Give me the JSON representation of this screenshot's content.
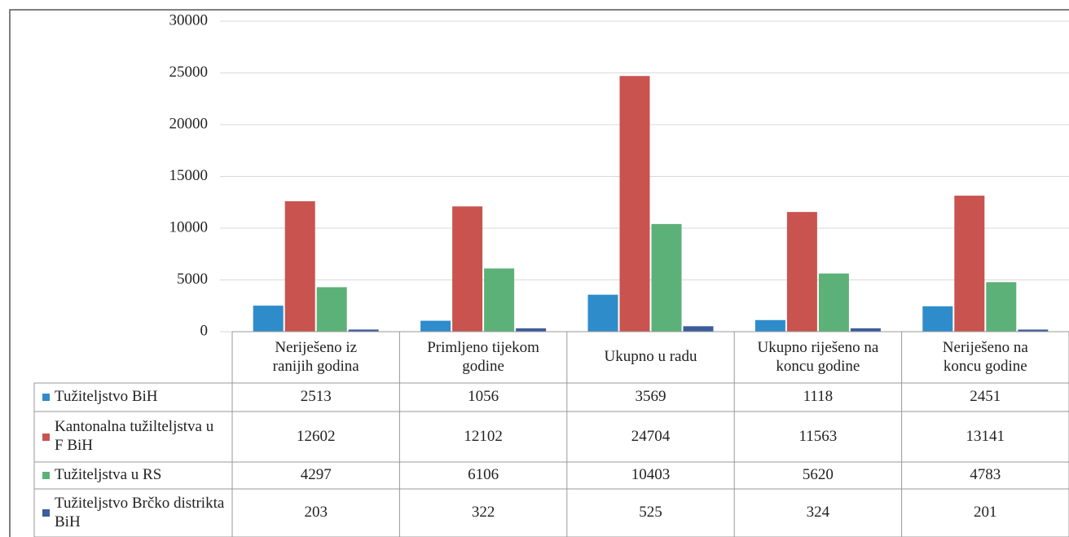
{
  "chart_data": {
    "type": "bar",
    "categories": [
      "Neriješeno iz ranijih godina",
      "Primljeno tijekom godine",
      "Ukupno u radu",
      "Ukupno riješeno na koncu godine",
      "Neriješeno na koncu godine"
    ],
    "series": [
      {
        "name": "Tužiteljstvo BiH",
        "color": "#2f8ccb",
        "values": [
          2513,
          1056,
          3569,
          1118,
          2451
        ]
      },
      {
        "name": "Kantonalna tužilteljstva u F BiH",
        "color": "#c9534f",
        "values": [
          12602,
          12102,
          24704,
          11563,
          13141
        ]
      },
      {
        "name": "Tužiteljstva u RS",
        "color": "#5cb178",
        "values": [
          4297,
          6106,
          10403,
          5620,
          4783
        ]
      },
      {
        "name": "Tužiteljstvo Brčko distrikta BiH",
        "color": "#3d5c9c",
        "values": [
          203,
          322,
          525,
          324,
          201
        ]
      }
    ],
    "ylim": [
      0,
      30000
    ],
    "yticks": [
      0,
      5000,
      10000,
      15000,
      20000,
      25000,
      30000
    ],
    "grid": true
  }
}
